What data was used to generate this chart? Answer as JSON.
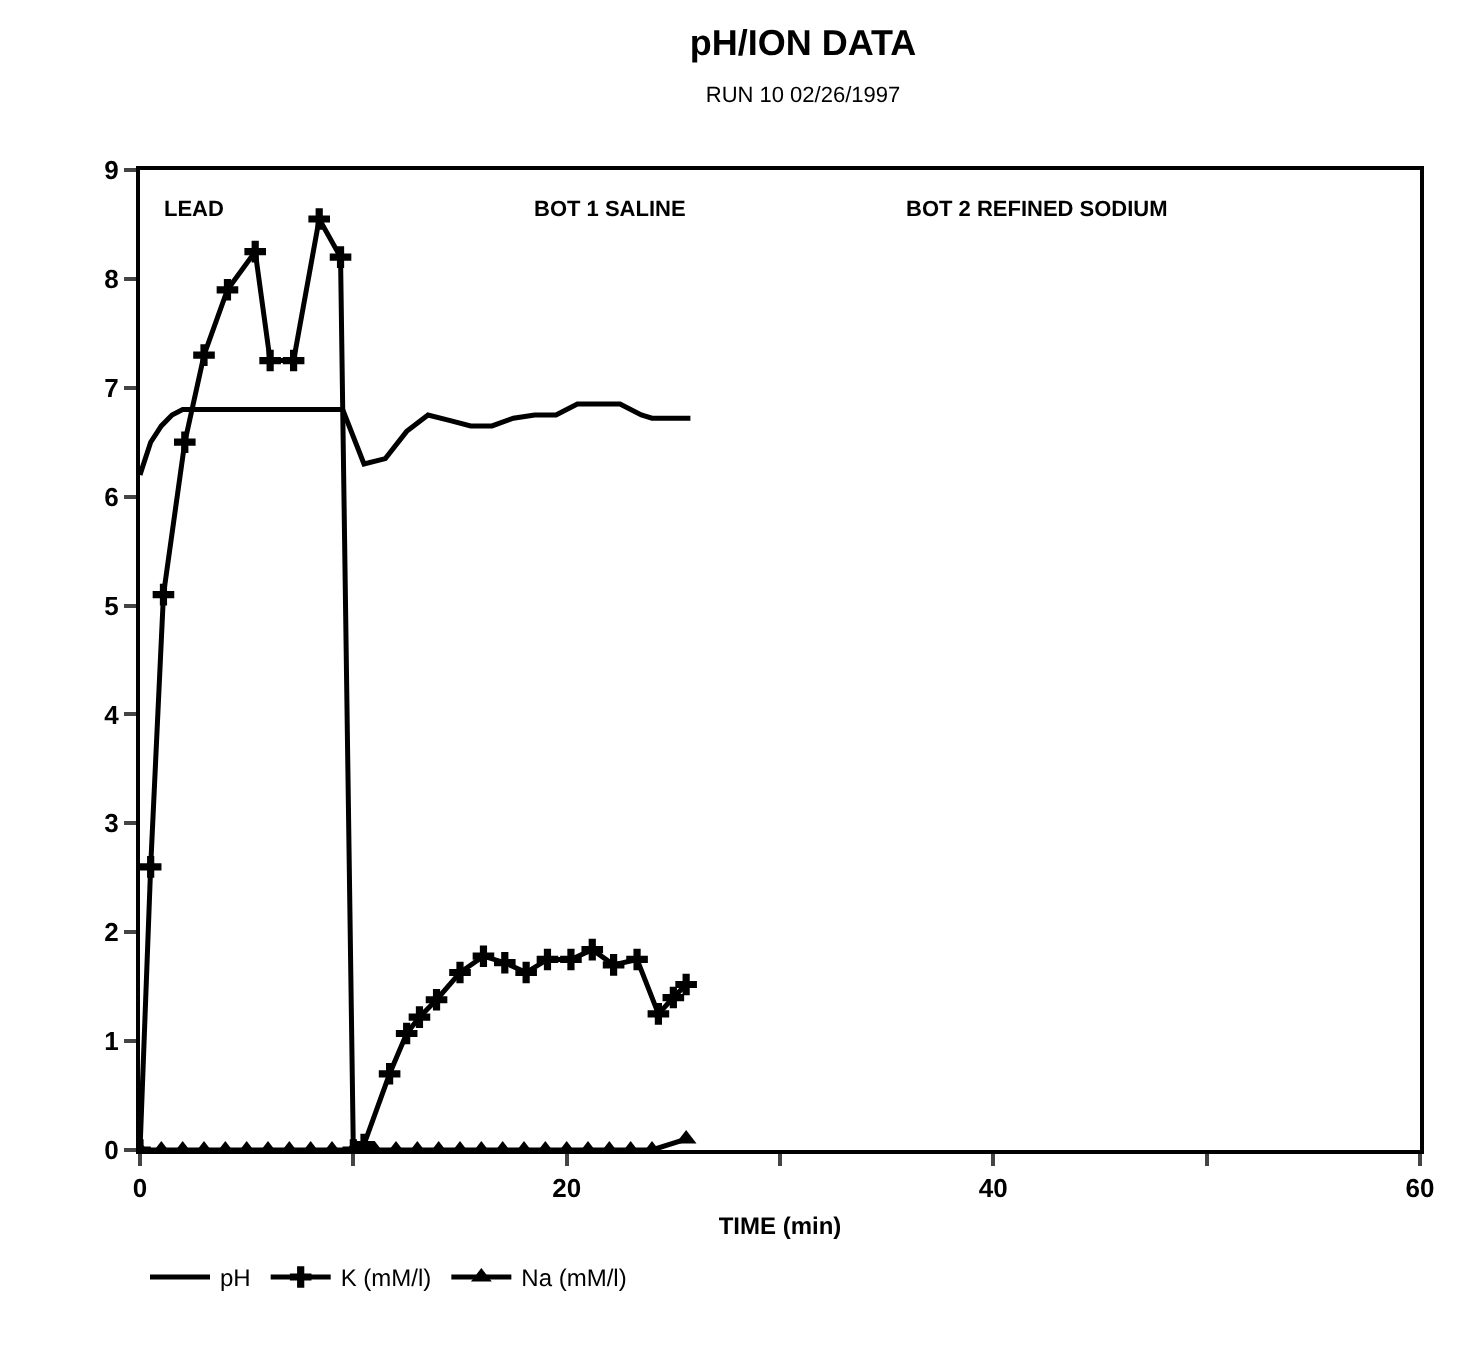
{
  "chart_data": {
    "type": "line",
    "title": "pH/ION DATA",
    "subtitle": "RUN 10 02/26/1997",
    "xlabel": "TIME (min)",
    "xlim": [
      0,
      60
    ],
    "xticks": [
      0,
      {
        "value": 10,
        "label": null
      },
      20,
      {
        "value": 30,
        "label": null
      },
      40,
      {
        "value": 50,
        "label": null
      },
      60
    ],
    "ylim": [
      0,
      9
    ],
    "yticks": [
      0,
      1,
      2,
      3,
      4,
      5,
      6,
      7,
      8,
      9
    ],
    "grid": false,
    "legend": "bottom",
    "annotations": [
      "LEAD",
      "BOT 1 SALINE",
      "BOT 2 REFINED SODIUM"
    ],
    "series": [
      {
        "name": "pH",
        "color": "#000000",
        "marker": "none",
        "x": [
          0,
          0.5,
          1,
          1.5,
          2,
          4,
          6,
          8,
          9.5,
          10,
          10.5,
          11.5,
          12.5,
          13.5,
          14.5,
          15.5,
          16.5,
          17.5,
          18.5,
          19.5,
          20.5,
          21.5,
          22.5,
          23.5,
          24,
          25.8
        ],
        "values": [
          6.2,
          6.5,
          6.65,
          6.75,
          6.8,
          6.8,
          6.8,
          6.8,
          6.8,
          6.55,
          6.3,
          6.35,
          6.6,
          6.75,
          6.7,
          6.65,
          6.65,
          6.72,
          6.75,
          6.75,
          6.85,
          6.85,
          6.85,
          6.75,
          6.72,
          6.72
        ]
      },
      {
        "name": "K (mM/l)",
        "color": "#000000",
        "marker": "cross",
        "x": [
          0,
          0.5,
          1.1,
          2.1,
          3.0,
          4.1,
          5.4,
          6.1,
          7.2,
          8.4,
          9.4,
          10.0,
          10.5,
          11.7,
          12.5,
          13.1,
          13.9,
          15.0,
          16.1,
          17.1,
          18.1,
          19.1,
          20.2,
          21.2,
          22.2,
          23.3,
          24.3,
          25.0,
          25.6
        ],
        "values": [
          0,
          2.6,
          5.1,
          6.5,
          7.3,
          7.9,
          8.25,
          7.25,
          7.25,
          8.55,
          8.2,
          0,
          0.05,
          0.7,
          1.07,
          1.22,
          1.38,
          1.63,
          1.78,
          1.72,
          1.63,
          1.75,
          1.75,
          1.84,
          1.7,
          1.75,
          1.25,
          1.4,
          1.52
        ]
      },
      {
        "name": "Na (mM/l)",
        "color": "#000000",
        "marker": "triangle",
        "x": [
          0,
          1,
          2,
          3,
          4,
          5,
          6,
          7,
          8,
          9,
          10,
          11,
          12,
          13,
          14,
          15,
          16,
          17,
          18,
          19,
          20,
          21,
          22,
          23,
          24,
          25.6
        ],
        "values": [
          0,
          0,
          0,
          0,
          0,
          0,
          0,
          0,
          0,
          0,
          0,
          0,
          0,
          0,
          0,
          0,
          0,
          0,
          0,
          0,
          0,
          0,
          0,
          0,
          0,
          0.1
        ]
      }
    ]
  }
}
